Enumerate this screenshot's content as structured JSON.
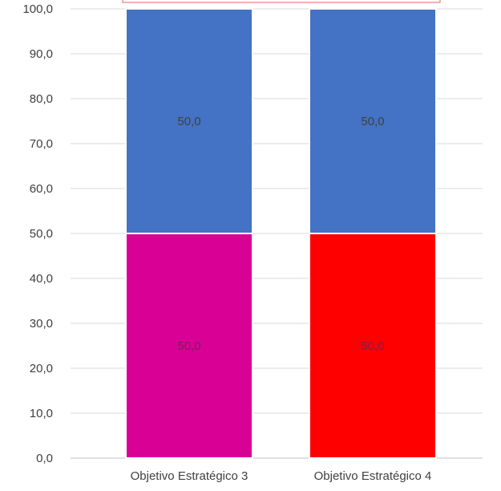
{
  "chart_data": {
    "type": "bar",
    "stacked": true,
    "categories": [
      "Objetivo Estratégico 3",
      "Objetivo Estratégico 4"
    ],
    "series": [
      {
        "values": [
          50.0,
          50.0
        ],
        "colors": [
          "#D90096",
          "#FF0000"
        ],
        "labels": [
          "50,0",
          "50,0"
        ],
        "label_color": "#7A1F55"
      },
      {
        "values": [
          50.0,
          50.0
        ],
        "colors": [
          "#4472C4",
          "#4472C4"
        ],
        "labels": [
          "50,0",
          "50,0"
        ],
        "label_color": "#404040"
      }
    ],
    "ylim": [
      0,
      100
    ],
    "y_ticks": [
      "0,0",
      "10,0",
      "20,0",
      "30,0",
      "40,0",
      "50,0",
      "60,0",
      "70,0",
      "80,0",
      "90,0",
      "100,0"
    ],
    "grid": true,
    "gridline_color": "#D9D9D9",
    "top_outline_color": "#E06666",
    "title": "",
    "xlabel": "",
    "ylabel": ""
  }
}
